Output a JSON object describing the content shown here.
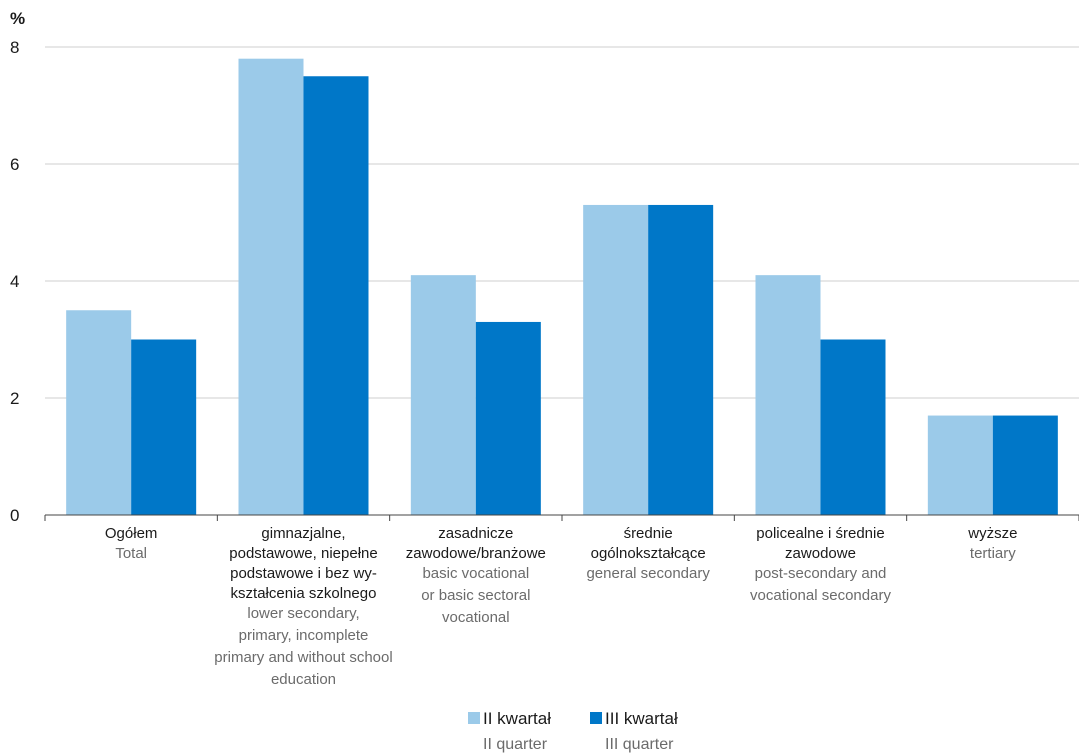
{
  "chart_data": {
    "type": "bar",
    "ylabel": "%",
    "ylim": [
      0,
      8
    ],
    "yticks": [
      "0",
      "2",
      "4",
      "6",
      "8"
    ],
    "grid": true,
    "legend_position": "bottom-center",
    "categories": [
      {
        "pl": [
          "Ogółem"
        ],
        "en": [
          "Total"
        ]
      },
      {
        "pl": [
          "gimnazjalne,",
          "podstawowe, niepełne",
          "podstawowe i bez wy-",
          "kształcenia szkolnego"
        ],
        "en": [
          "lower secondary,",
          "primary, incomplete",
          "primary and without school",
          "education"
        ]
      },
      {
        "pl": [
          "zasadnicze",
          "zawodowe/branżowe"
        ],
        "en": [
          "basic vocational",
          "or basic sectoral",
          "vocational"
        ]
      },
      {
        "pl": [
          "średnie",
          "ogólnokształcące"
        ],
        "en": [
          "general secondary"
        ]
      },
      {
        "pl": [
          "policealne i średnie",
          "zawodowe"
        ],
        "en": [
          "post-secondary and",
          "vocational secondary"
        ]
      },
      {
        "pl": [
          "wyższe"
        ],
        "en": [
          "tertiary"
        ]
      }
    ],
    "series": [
      {
        "name": "II kwartał",
        "name_en": "II quarter",
        "color": "#9bcae9",
        "values": [
          3.5,
          7.8,
          4.1,
          5.3,
          4.1,
          1.7
        ]
      },
      {
        "name": "III kwartał",
        "name_en": "III quarter",
        "color": "#0077c8",
        "values": [
          3.0,
          7.5,
          3.3,
          5.3,
          3.0,
          1.7
        ]
      }
    ]
  }
}
